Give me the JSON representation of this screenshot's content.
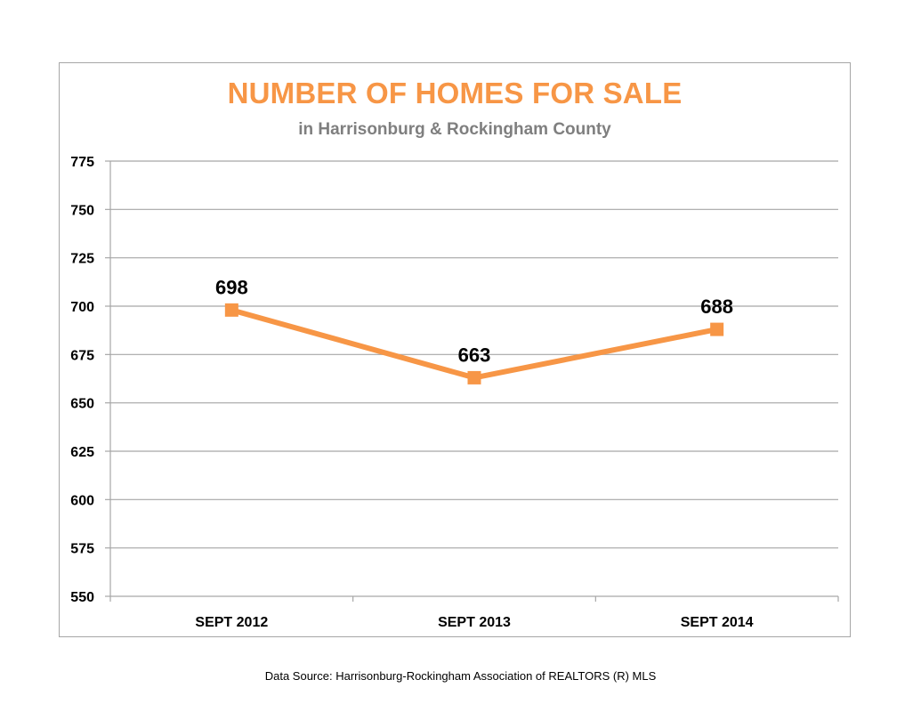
{
  "chart_data": {
    "type": "line",
    "title": "NUMBER OF HOMES  FOR SALE",
    "subtitle": "in Harrisonburg  & Rockingham County",
    "categories": [
      "SEPT 2012",
      "SEPT 2013",
      "SEPT 2014"
    ],
    "series": [
      {
        "values": [
          698,
          663,
          688
        ],
        "color": "#f79646"
      }
    ],
    "data_labels": [
      "698",
      "663",
      "688"
    ],
    "ylim": [
      550,
      775
    ],
    "y_ticks": [
      550,
      575,
      600,
      625,
      650,
      675,
      700,
      725,
      750,
      775
    ],
    "xlabel": "",
    "ylabel": "",
    "grid": true,
    "legend": "none",
    "marker": "square",
    "gridline_color": "#a6a6a6",
    "label_color": "#000000"
  },
  "footer": {
    "source": "Data Source: Harrisonburg-Rockingham Association of REALTORS (R) MLS"
  }
}
